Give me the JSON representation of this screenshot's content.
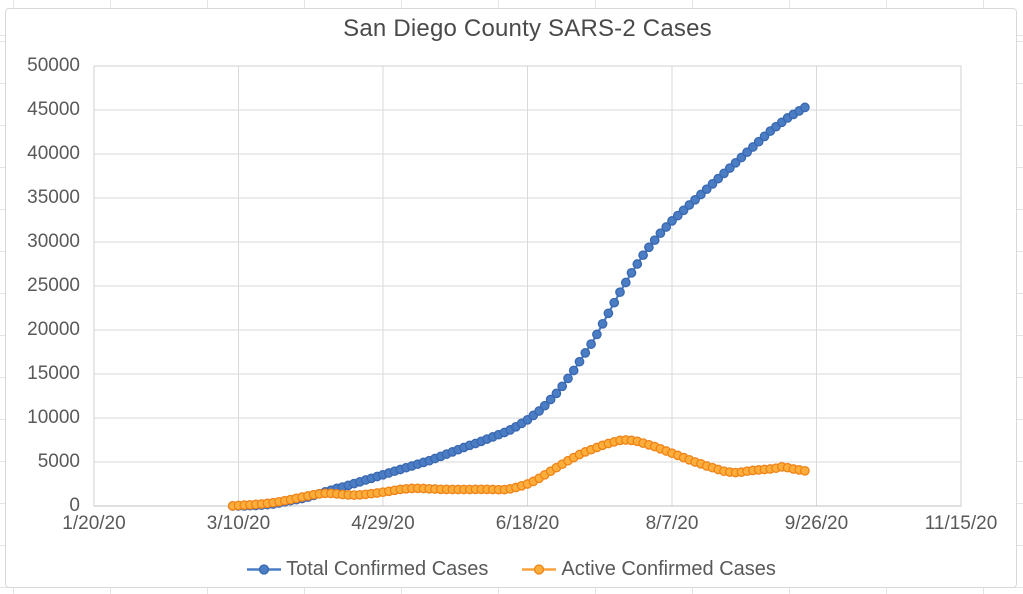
{
  "chart_data": {
    "type": "line",
    "title": "San Diego County SARS-2 Cases",
    "grid": true,
    "legend_position": "bottom",
    "x_axis": {
      "tick_labels": [
        "1/20/20",
        "3/10/20",
        "4/29/20",
        "6/18/20",
        "8/7/20",
        "9/26/20",
        "11/15/20"
      ],
      "tick_interval_days": 50,
      "range_days": [
        0,
        300
      ]
    },
    "y_axis": {
      "tick_labels": [
        "50000",
        "45000",
        "40000",
        "35000",
        "30000",
        "25000",
        "20000",
        "15000",
        "10000",
        "5000",
        "0"
      ],
      "min": 0,
      "max": 50000,
      "step": 5000
    },
    "x_days_since_first_axis_date": [
      48,
      50,
      52,
      54,
      56,
      58,
      60,
      62,
      64,
      66,
      68,
      70,
      72,
      74,
      76,
      78,
      80,
      82,
      84,
      86,
      88,
      90,
      92,
      94,
      96,
      98,
      100,
      102,
      104,
      106,
      108,
      110,
      112,
      114,
      116,
      118,
      120,
      122,
      124,
      126,
      128,
      130,
      132,
      134,
      136,
      138,
      140,
      142,
      144,
      146,
      148,
      150,
      152,
      154,
      156,
      158,
      160,
      162,
      164,
      166,
      168,
      170,
      172,
      174,
      176,
      178,
      180,
      182,
      184,
      186,
      188,
      190,
      192,
      194,
      196,
      198,
      200,
      202,
      204,
      206,
      208,
      210,
      212,
      214,
      216,
      218,
      220,
      222,
      224,
      226,
      228,
      230,
      232,
      234,
      236,
      238,
      240,
      242,
      244,
      246
    ],
    "series": [
      {
        "name": "Total Confirmed Cases",
        "marker": "circle",
        "color": "#4A7DC4",
        "edge_color": "#3A68B0",
        "values": [
          0,
          7,
          15,
          30,
          60,
          100,
          160,
          230,
          340,
          480,
          600,
          720,
          850,
          1000,
          1200,
          1400,
          1600,
          1800,
          2000,
          2150,
          2350,
          2550,
          2750,
          2950,
          3150,
          3350,
          3550,
          3750,
          3950,
          4150,
          4350,
          4550,
          4750,
          4950,
          5150,
          5400,
          5650,
          5900,
          6150,
          6400,
          6650,
          6900,
          7100,
          7350,
          7600,
          7850,
          8100,
          8350,
          8650,
          9000,
          9400,
          9800,
          10300,
          10800,
          11400,
          12100,
          12800,
          13600,
          14500,
          15400,
          16400,
          17400,
          18400,
          19500,
          20700,
          21900,
          23100,
          24300,
          25400,
          26500,
          27500,
          28500,
          29400,
          30200,
          31000,
          31700,
          32400,
          33000,
          33600,
          34200,
          34800,
          35400,
          36000,
          36600,
          37200,
          37800,
          38400,
          39000,
          39600,
          40200,
          40800,
          41400,
          42000,
          42600,
          43100,
          43600,
          44100,
          44500,
          44900,
          45300
        ]
      },
      {
        "name": "Active Confirmed Cases",
        "marker": "circle",
        "color": "#FCAE3C",
        "edge_color": "#EF8318",
        "line_color": "#F9A23C",
        "values": [
          10,
          60,
          100,
          140,
          180,
          230,
          300,
          380,
          480,
          600,
          730,
          870,
          1020,
          1150,
          1280,
          1380,
          1440,
          1430,
          1380,
          1310,
          1260,
          1240,
          1270,
          1330,
          1400,
          1480,
          1570,
          1670,
          1780,
          1890,
          1960,
          2000,
          2010,
          1990,
          1960,
          1930,
          1900,
          1890,
          1880,
          1870,
          1870,
          1880,
          1890,
          1900,
          1890,
          1870,
          1850,
          1860,
          1950,
          2100,
          2300,
          2500,
          2800,
          3150,
          3550,
          3950,
          4350,
          4750,
          5150,
          5500,
          5850,
          6150,
          6400,
          6650,
          6900,
          7100,
          7300,
          7450,
          7500,
          7450,
          7350,
          7150,
          6950,
          6750,
          6500,
          6250,
          6000,
          5750,
          5500,
          5250,
          5000,
          4800,
          4550,
          4350,
          4150,
          3950,
          3850,
          3800,
          3850,
          3950,
          4050,
          4100,
          4150,
          4200,
          4300,
          4450,
          4350,
          4200,
          4100,
          4000
        ]
      }
    ]
  },
  "colors": {
    "background": "#FFFFFF",
    "sheet_gridline": "#E4E4E4",
    "chart_card_border": "#D8D8D8",
    "grid": "#DADADA",
    "plot_border": "#D2D2D2",
    "axis_line": "#C2C2C2",
    "tick_text": "#595959",
    "title_text": "#4A4A4A",
    "legend_text": "#58595B"
  }
}
